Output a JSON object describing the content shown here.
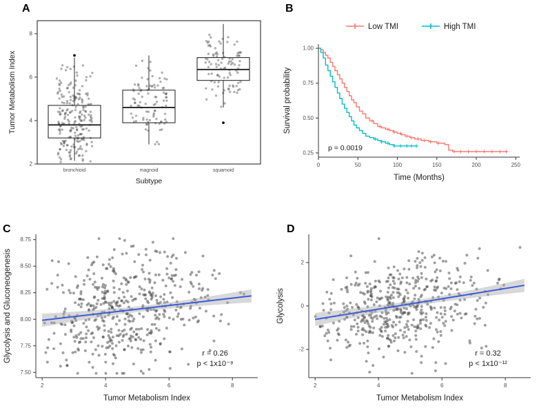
{
  "figure": {
    "panels": {
      "A": {
        "label": "A"
      },
      "B": {
        "label": "B"
      },
      "C": {
        "label": "C"
      },
      "D": {
        "label": "D"
      }
    }
  },
  "chart_data": [
    {
      "id": "A",
      "type": "boxplot",
      "xlabel": "Subtype",
      "ylabel": "Tumor Metabolism Index",
      "categories": [
        "bronchioid",
        "magnoid",
        "squamoid"
      ],
      "ylim": [
        2,
        8.6
      ],
      "yticks": [
        {
          "v": 2,
          "label": "2"
        },
        {
          "v": 4,
          "label": "4"
        },
        {
          "v": 6,
          "label": "6"
        },
        {
          "v": 8,
          "label": "8"
        }
      ],
      "boxes": [
        {
          "category": "bronchioid",
          "median": 3.8,
          "q1": 3.2,
          "q3": 4.7,
          "whisker_low": 2.15,
          "whisker_high": 6.9,
          "outliers": [
            7.0
          ],
          "n_points": 220,
          "jitter_clip": [
            2.05,
            7.05
          ]
        },
        {
          "category": "magnoid",
          "median": 4.6,
          "q1": 3.9,
          "q3": 5.4,
          "whisker_low": 2.9,
          "whisker_high": 7.0,
          "outliers": [],
          "n_points": 95,
          "jitter_clip": [
            2.85,
            7.25
          ]
        },
        {
          "category": "squamoid",
          "median": 6.35,
          "q1": 5.85,
          "q3": 6.9,
          "whisker_low": 4.6,
          "whisker_high": 8.45,
          "outliers": [
            3.9
          ],
          "n_points": 95,
          "jitter_clip": [
            3.95,
            8.5
          ]
        }
      ],
      "point_color": "#4d4d4d",
      "box_color": "#2b2b2b",
      "seed": 11
    },
    {
      "id": "B",
      "type": "line",
      "subtype": "kaplan-meier",
      "xlabel": "Time (Months)",
      "ylabel": "Survival  probability",
      "p_value": "p = 0.0019",
      "xlim": [
        0,
        255
      ],
      "xticks": [
        {
          "v": 0,
          "label": "0"
        },
        {
          "v": 50,
          "label": "50"
        },
        {
          "v": 100,
          "label": "100"
        },
        {
          "v": 150,
          "label": "150"
        },
        {
          "v": 200,
          "label": "200"
        },
        {
          "v": 250,
          "label": "250"
        }
      ],
      "yticks": [
        {
          "v": 0.25,
          "label": "0.25"
        },
        {
          "v": 0.5,
          "label": "0.50"
        },
        {
          "v": 0.75,
          "label": "0.75"
        },
        {
          "v": 1.0,
          "label": "1.00"
        }
      ],
      "legend_position": "top",
      "series": [
        {
          "name": "Low TMI",
          "color": "#F8766D",
          "steps": [
            [
              0,
              1.0
            ],
            [
              3,
              0.99
            ],
            [
              6,
              0.97
            ],
            [
              9,
              0.95
            ],
            [
              12,
              0.93
            ],
            [
              15,
              0.9
            ],
            [
              18,
              0.87
            ],
            [
              21,
              0.84
            ],
            [
              24,
              0.81
            ],
            [
              27,
              0.78
            ],
            [
              30,
              0.75
            ],
            [
              33,
              0.72
            ],
            [
              36,
              0.69
            ],
            [
              39,
              0.66
            ],
            [
              42,
              0.63
            ],
            [
              45,
              0.61
            ],
            [
              48,
              0.58
            ],
            [
              52,
              0.55
            ],
            [
              56,
              0.53
            ],
            [
              60,
              0.5
            ],
            [
              65,
              0.48
            ],
            [
              70,
              0.46
            ],
            [
              75,
              0.44
            ],
            [
              80,
              0.43
            ],
            [
              85,
              0.42
            ],
            [
              90,
              0.41
            ],
            [
              95,
              0.4
            ],
            [
              100,
              0.39
            ],
            [
              105,
              0.38
            ],
            [
              110,
              0.37
            ],
            [
              116,
              0.36
            ],
            [
              122,
              0.35
            ],
            [
              130,
              0.34
            ],
            [
              140,
              0.33
            ],
            [
              150,
              0.32
            ],
            [
              160,
              0.31
            ],
            [
              165,
              0.27
            ],
            [
              170,
              0.26
            ],
            [
              240,
              0.26
            ]
          ],
          "censor_times": [
            68,
            78,
            88,
            96,
            104,
            112,
            118,
            126,
            134,
            142,
            152,
            172,
            180,
            190,
            200,
            210,
            220,
            230,
            238
          ]
        },
        {
          "name": "High TMI",
          "color": "#00BFC4",
          "steps": [
            [
              0,
              1.0
            ],
            [
              3,
              0.97
            ],
            [
              6,
              0.93
            ],
            [
              9,
              0.88
            ],
            [
              12,
              0.84
            ],
            [
              15,
              0.8
            ],
            [
              18,
              0.76
            ],
            [
              21,
              0.72
            ],
            [
              24,
              0.68
            ],
            [
              27,
              0.64
            ],
            [
              30,
              0.6
            ],
            [
              33,
              0.57
            ],
            [
              36,
              0.54
            ],
            [
              39,
              0.51
            ],
            [
              42,
              0.48
            ],
            [
              45,
              0.45
            ],
            [
              48,
              0.43
            ],
            [
              52,
              0.41
            ],
            [
              56,
              0.39
            ],
            [
              60,
              0.37
            ],
            [
              65,
              0.36
            ],
            [
              70,
              0.35
            ],
            [
              75,
              0.34
            ],
            [
              80,
              0.33
            ],
            [
              85,
              0.32
            ],
            [
              90,
              0.31
            ],
            [
              96,
              0.3
            ],
            [
              104,
              0.3
            ],
            [
              112,
              0.3
            ],
            [
              120,
              0.3
            ],
            [
              126,
              0.3
            ]
          ],
          "censor_times": [
            72,
            80,
            88,
            96,
            104,
            112,
            118,
            124
          ]
        }
      ]
    },
    {
      "id": "C",
      "type": "scatter",
      "xlabel": "Tumor Metabolism Index",
      "ylabel": "Glycolysis and Gluconeogenesis",
      "xlim": [
        1.8,
        8.8
      ],
      "ylim": [
        7.45,
        8.8
      ],
      "xticks": [
        {
          "v": 2,
          "label": "2"
        },
        {
          "v": 4,
          "label": "4"
        },
        {
          "v": 6,
          "label": "6"
        },
        {
          "v": 8,
          "label": "8"
        }
      ],
      "yticks": [
        {
          "v": 7.5,
          "label": "7.50"
        },
        {
          "v": 7.75,
          "label": "7.75"
        },
        {
          "v": 8.0,
          "label": "8.00"
        },
        {
          "v": 8.25,
          "label": "8.25"
        },
        {
          "v": 8.5,
          "label": "8.50"
        },
        {
          "v": 8.75,
          "label": "8.75"
        }
      ],
      "n_points": 500,
      "correlation_label": "r = 0.26",
      "p_value": "p < 1x10⁻⁸",
      "regression": {
        "x0": 2.0,
        "y0": 7.99,
        "x1": 8.6,
        "y1": 8.22,
        "line_color": "#3A5BD7",
        "ribbon_color": "#a8a8a8"
      },
      "point_cloud": {
        "x_mean": 4.6,
        "x_sd": 1.35,
        "y_sd": 0.27,
        "x_clip": [
          2.0,
          8.55
        ],
        "seed": 42
      },
      "point_color": "#404040"
    },
    {
      "id": "D",
      "type": "scatter",
      "xlabel": "Tumor Metabolism Index",
      "ylabel": "Glycolysis",
      "xlim": [
        1.8,
        8.8
      ],
      "ylim": [
        -3.3,
        3.3
      ],
      "xticks": [
        {
          "v": 2,
          "label": "2"
        },
        {
          "v": 4,
          "label": "4"
        },
        {
          "v": 6,
          "label": "6"
        },
        {
          "v": 8,
          "label": "8"
        }
      ],
      "yticks": [
        {
          "v": -2,
          "label": "-2"
        },
        {
          "v": 0,
          "label": "0"
        },
        {
          "v": 2,
          "label": "2"
        }
      ],
      "n_points": 500,
      "correlation_label": "r = 0.32",
      "p_value": "p < 1x10⁻¹²",
      "regression": {
        "x0": 2.0,
        "y0": -0.62,
        "x1": 8.6,
        "y1": 0.95,
        "line_color": "#3A5BD7",
        "ribbon_color": "#a8a8a8"
      },
      "point_cloud": {
        "x_mean": 4.6,
        "x_sd": 1.35,
        "y_sd": 1.05,
        "x_clip": [
          2.0,
          8.55
        ],
        "seed": 77
      },
      "point_color": "#404040"
    }
  ]
}
